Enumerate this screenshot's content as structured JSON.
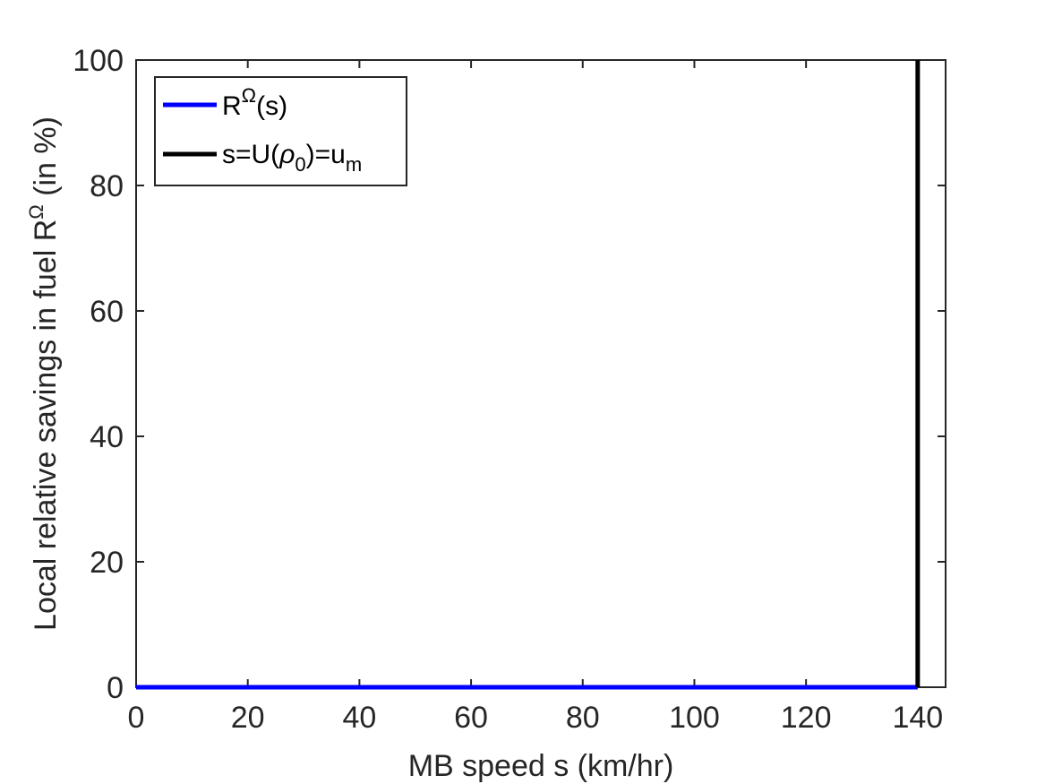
{
  "chart_data": {
    "type": "line",
    "xlabel": "MB speed s (km/hr)",
    "ylabel": {
      "before": "Local relative savings in fuel R",
      "sup": "Ω",
      "after": " (in %)"
    },
    "xlim": [
      0,
      145
    ],
    "ylim": [
      0,
      100
    ],
    "xticks": [
      0,
      20,
      40,
      60,
      80,
      100,
      120,
      140
    ],
    "yticks": [
      0,
      20,
      40,
      60,
      80,
      100
    ],
    "grid": false,
    "legend_position": "top-left",
    "series": [
      {
        "name": "R^Ω(s)",
        "legend": {
          "base": "R",
          "sup": "Ω",
          "after": "(s)"
        },
        "color": "#0000ff",
        "x": [
          0,
          140
        ],
        "y": [
          0,
          0
        ]
      },
      {
        "name": "s=U(ρ_0)=u_m",
        "legend": {
          "a": "s=U(",
          "rho": "ρ",
          "rho_sub": "0",
          "b": ")=u",
          "m_sub": "m"
        },
        "color": "#000000",
        "x": [
          140,
          140
        ],
        "y": [
          0,
          100
        ]
      }
    ]
  }
}
